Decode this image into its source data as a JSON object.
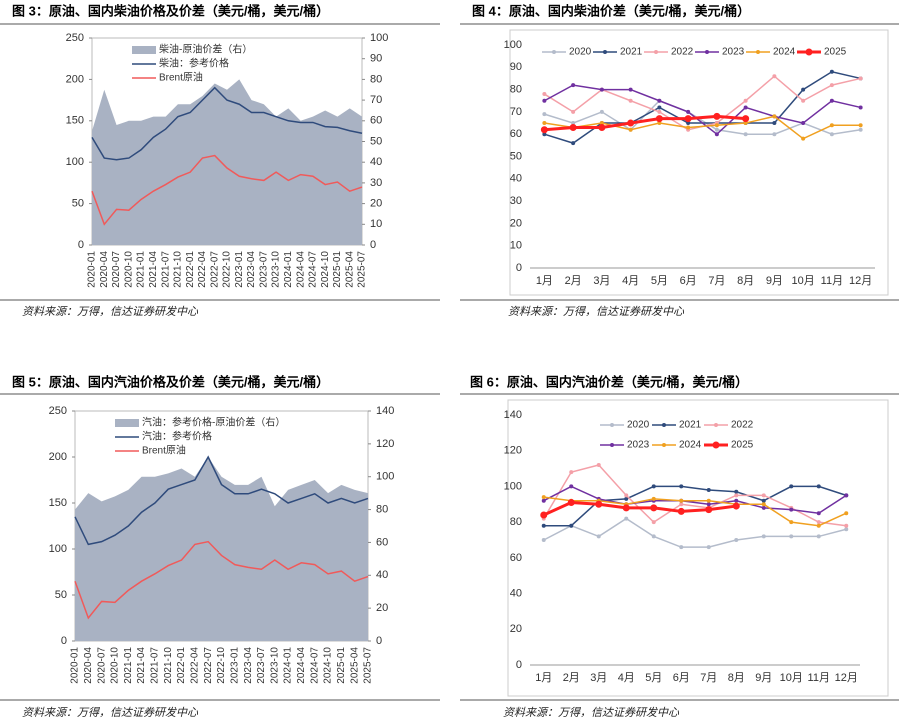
{
  "chart_data": [
    {
      "type": "line",
      "title": "图 3：原油、国内柴油价格及价差（美元/桶，美元/桶）",
      "source": "资料来源：万得，信达证券研发中心",
      "categories": [
        "2020-01",
        "2020-04",
        "2020-07",
        "2020-10",
        "2021-01",
        "2021-04",
        "2021-07",
        "2021-10",
        "2022-01",
        "2022-04",
        "2022-07",
        "2022-10",
        "2023-01",
        "2023-04",
        "2023-07",
        "2023-10",
        "2024-01",
        "2024-04",
        "2024-07",
        "2024-10",
        "2025-01",
        "2025-04",
        "2025-07"
      ],
      "ylim": [
        0,
        250
      ],
      "yticks": [
        0,
        50,
        100,
        150,
        200,
        250
      ],
      "y2lim": [
        0,
        100
      ],
      "y2ticks": [
        0,
        10,
        20,
        30,
        40,
        50,
        60,
        70,
        80,
        90,
        100
      ],
      "series": [
        {
          "name": "柴油-原油价差（右）",
          "color": "#a9b2c3",
          "type": "area",
          "axis": "y2",
          "values": [
            55,
            75,
            58,
            60,
            60,
            62,
            62,
            68,
            68,
            72,
            78,
            75,
            80,
            70,
            68,
            62,
            66,
            60,
            62,
            65,
            62,
            66,
            62
          ]
        },
        {
          "name": "柴油：参考价格",
          "color": "#2f4b7c",
          "values": [
            130,
            105,
            103,
            105,
            115,
            130,
            140,
            155,
            160,
            175,
            190,
            175,
            170,
            160,
            160,
            155,
            150,
            148,
            148,
            143,
            142,
            138,
            135
          ]
        },
        {
          "name": "Brent原油",
          "color": "#f05a5a",
          "values": [
            65,
            25,
            43,
            42,
            55,
            65,
            73,
            82,
            88,
            105,
            108,
            93,
            83,
            80,
            78,
            88,
            78,
            85,
            83,
            73,
            76,
            65,
            70
          ]
        }
      ]
    },
    {
      "type": "line",
      "title": "图 4：原油、国内柴油价差（美元/桶，美元/桶）",
      "source": "资料来源：万得，信达证券研发中心",
      "categories": [
        "1月",
        "2月",
        "3月",
        "4月",
        "5月",
        "6月",
        "7月",
        "8月",
        "9月",
        "10月",
        "11月",
        "12月"
      ],
      "ylim": [
        0,
        100
      ],
      "yticks": [
        0,
        10,
        20,
        30,
        40,
        50,
        60,
        70,
        80,
        90,
        100
      ],
      "series": [
        {
          "name": "2020",
          "color": "#b4bccb",
          "values": [
            69,
            65,
            70,
            62,
            75,
            70,
            62,
            60,
            60,
            65,
            60,
            62
          ]
        },
        {
          "name": "2021",
          "color": "#2f4b7c",
          "values": [
            60,
            56,
            65,
            65,
            72,
            65,
            65,
            65,
            65,
            80,
            88,
            85
          ]
        },
        {
          "name": "2022",
          "color": "#f4a0a8",
          "values": [
            78,
            70,
            80,
            75,
            70,
            62,
            65,
            75,
            86,
            75,
            82,
            85
          ]
        },
        {
          "name": "2023",
          "color": "#7030a0",
          "values": [
            75,
            82,
            80,
            80,
            75,
            70,
            60,
            72,
            68,
            65,
            75,
            72
          ]
        },
        {
          "name": "2024",
          "color": "#f0a020",
          "values": [
            65,
            63,
            65,
            62,
            65,
            63,
            64,
            65,
            68,
            58,
            64,
            64
          ]
        },
        {
          "name": "2025",
          "color": "#ff2020",
          "line_width": 3,
          "values": [
            62,
            63,
            63,
            65,
            67,
            67,
            68,
            67,
            null,
            null,
            null,
            null
          ]
        }
      ]
    },
    {
      "type": "line",
      "title": "图 5：原油、国内汽油价格及价差（美元/桶，美元/桶）",
      "source": "资料来源：万得，信达证券研发中心",
      "categories": [
        "2020-01",
        "2020-04",
        "2020-07",
        "2020-10",
        "2021-01",
        "2021-04",
        "2021-07",
        "2021-10",
        "2022-01",
        "2022-04",
        "2022-07",
        "2022-10",
        "2023-01",
        "2023-04",
        "2023-07",
        "2023-10",
        "2024-01",
        "2024-04",
        "2024-07",
        "2024-10",
        "2025-01",
        "2025-04",
        "2025-07"
      ],
      "ylim": [
        0,
        250
      ],
      "yticks": [
        0,
        50,
        100,
        150,
        200,
        250
      ],
      "y2lim": [
        0,
        140
      ],
      "y2ticks": [
        0,
        20,
        40,
        60,
        80,
        100,
        120,
        140
      ],
      "series": [
        {
          "name": "汽油：参考价格-原油价差（右）",
          "color": "#a9b2c3",
          "type": "area",
          "axis": "y2",
          "values": [
            80,
            90,
            85,
            88,
            92,
            100,
            100,
            102,
            105,
            100,
            112,
            100,
            95,
            95,
            100,
            82,
            92,
            95,
            98,
            90,
            95,
            92,
            90
          ]
        },
        {
          "name": "汽油：参考价格",
          "color": "#2f4b7c",
          "values": [
            135,
            105,
            108,
            115,
            125,
            140,
            150,
            165,
            170,
            175,
            200,
            170,
            160,
            160,
            165,
            160,
            150,
            155,
            160,
            150,
            155,
            150,
            155
          ]
        },
        {
          "name": "Brent原油",
          "color": "#f05a5a",
          "values": [
            65,
            25,
            43,
            42,
            55,
            65,
            73,
            82,
            88,
            105,
            108,
            93,
            83,
            80,
            78,
            88,
            78,
            85,
            83,
            73,
            76,
            65,
            70
          ]
        }
      ]
    },
    {
      "type": "line",
      "title": "图 6：原油、国内汽油价差（美元/桶，美元/桶）",
      "source": "资料来源：万得，信达证券研发中心",
      "categories": [
        "1月",
        "2月",
        "3月",
        "4月",
        "5月",
        "6月",
        "7月",
        "8月",
        "9月",
        "10月",
        "11月",
        "12月"
      ],
      "ylim": [
        0,
        140
      ],
      "yticks": [
        0,
        20,
        40,
        60,
        80,
        100,
        120,
        140
      ],
      "series": [
        {
          "name": "2020",
          "color": "#b4bccb",
          "values": [
            70,
            78,
            72,
            82,
            72,
            66,
            66,
            70,
            72,
            72,
            72,
            76
          ]
        },
        {
          "name": "2021",
          "color": "#2f4b7c",
          "values": [
            78,
            78,
            92,
            93,
            100,
            100,
            98,
            97,
            92,
            100,
            100,
            95
          ]
        },
        {
          "name": "2022",
          "color": "#f4a0a8",
          "values": [
            82,
            108,
            112,
            95,
            80,
            90,
            88,
            95,
            95,
            88,
            80,
            78
          ]
        },
        {
          "name": "2023",
          "color": "#7030a0",
          "values": [
            92,
            100,
            93,
            90,
            92,
            92,
            90,
            92,
            88,
            87,
            85,
            95
          ]
        },
        {
          "name": "2024",
          "color": "#f0a020",
          "values": [
            94,
            92,
            92,
            90,
            93,
            92,
            92,
            90,
            90,
            80,
            78,
            85
          ]
        },
        {
          "name": "2025",
          "color": "#ff2020",
          "line_width": 3,
          "values": [
            84,
            91,
            90,
            88,
            88,
            86,
            87,
            89,
            null,
            null,
            null,
            null
          ]
        }
      ]
    }
  ]
}
